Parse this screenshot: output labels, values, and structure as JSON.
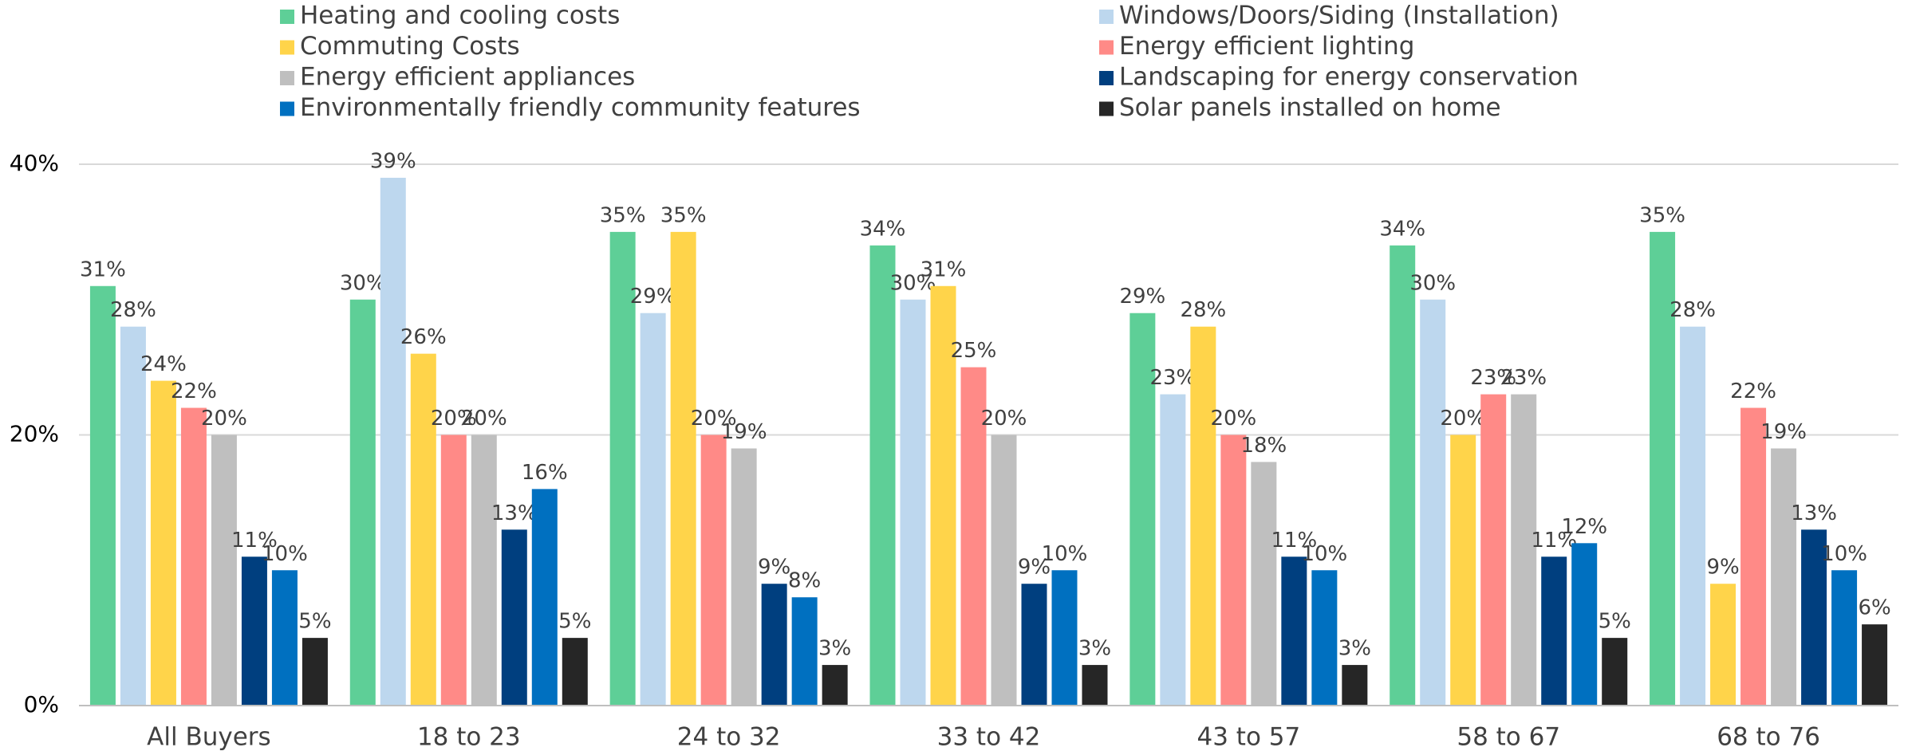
{
  "chart_data": {
    "type": "bar",
    "categories": [
      "All Buyers",
      "18 to 23",
      "24 to 32",
      "33 to 42",
      "43 to 57",
      "58 to 67",
      "68 to 76"
    ],
    "series": [
      {
        "name": "Heating and cooling costs",
        "color": "#5ecf97",
        "values": [
          31,
          30,
          35,
          34,
          29,
          34,
          35
        ],
        "value_labels": [
          "31%",
          "30%",
          "35%",
          "34%",
          "29%",
          "34%",
          "35%"
        ]
      },
      {
        "name": "Windows/Doors/Siding (Installation)",
        "color": "#bdd7ee",
        "values": [
          28,
          39,
          29,
          30,
          23,
          30,
          28
        ],
        "value_labels": [
          "28%",
          "39%",
          "29%",
          "30%",
          "23%",
          "30%",
          "28%"
        ]
      },
      {
        "name": "Commuting Costs",
        "color": "#ffd44a",
        "values": [
          24,
          26,
          35,
          31,
          28,
          20,
          9
        ],
        "value_labels": [
          "24%",
          "26%",
          "35%",
          "31%",
          "28%",
          "20%",
          "9%"
        ]
      },
      {
        "name": "Energy efficient lighting",
        "color": "#ff8a87",
        "values": [
          22,
          20,
          20,
          25,
          20,
          23,
          22
        ],
        "value_labels": [
          "22%",
          "20%",
          "20%",
          "25%",
          "20%",
          "23%",
          "22%"
        ]
      },
      {
        "name": "Energy efficient appliances",
        "color": "#bfbfbf",
        "values": [
          20,
          20,
          19,
          20,
          18,
          23,
          19
        ],
        "value_labels": [
          "20%",
          "20%",
          "19%",
          "20%",
          "18%",
          "23%",
          "19%"
        ]
      },
      {
        "name": "Landscaping for energy conservation",
        "color": "#003f7f",
        "values": [
          11,
          13,
          9,
          9,
          11,
          11,
          13
        ],
        "value_labels": [
          "11%",
          "13%",
          "9%",
          "9%",
          "11%",
          "11%",
          "13%"
        ]
      },
      {
        "name": "Environmentally friendly community features",
        "color": "#0070c0",
        "values": [
          10,
          16,
          8,
          10,
          10,
          12,
          10
        ],
        "value_labels": [
          "10%",
          "16%",
          "8%",
          "10%",
          "10%",
          "12%",
          "10%"
        ]
      },
      {
        "name": "Solar panels installed on home",
        "color": "#262626",
        "values": [
          5,
          5,
          3,
          3,
          3,
          5,
          6
        ],
        "value_labels": [
          "5%",
          "5%",
          "3%",
          "3%",
          "3%",
          "5%",
          "6%"
        ]
      }
    ],
    "ylim": [
      0,
      40
    ],
    "yticks": [
      {
        "value": 0,
        "label": "0%"
      },
      {
        "value": 20,
        "label": "20%"
      },
      {
        "value": 40,
        "label": "40%"
      }
    ],
    "grid": true,
    "legend": "top"
  }
}
